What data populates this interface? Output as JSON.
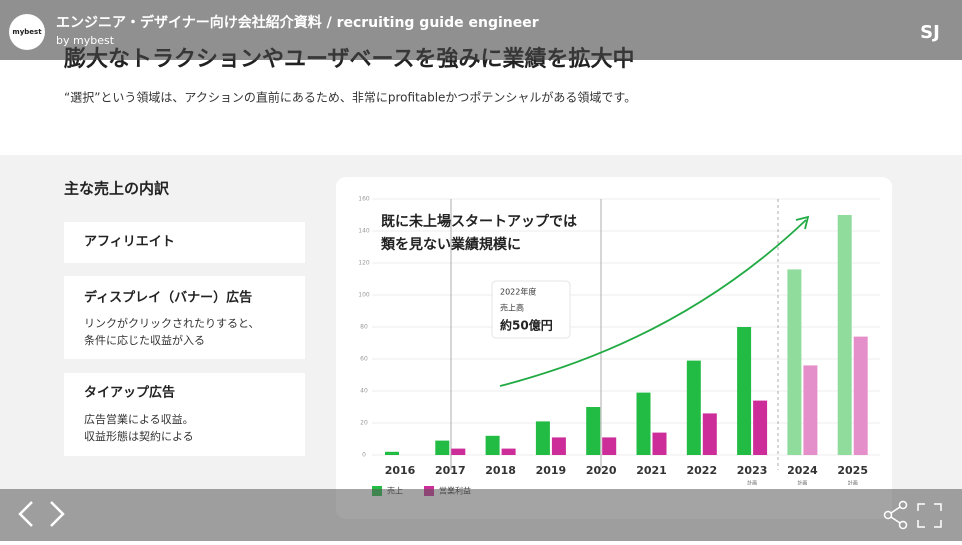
{
  "header": {
    "logo": "mybest",
    "title": "エンジニア・デザイナー向け会社紹介資料 / recruiting guide engineer",
    "byline": "by mybest",
    "brand": "SJ"
  },
  "slide": {
    "heading": "膨大なトラクションやユーザベースを強みに業績を拡大中",
    "subheading": "“選択”という領域は、アクションの直前にあるため、非常にprofitableかつポテンシャルがある領域です。",
    "section_title": "主な売上の内訳",
    "cards": [
      {
        "title": "アフィリエイト"
      },
      {
        "title": "ディスプレイ（バナー）広告",
        "body": [
          "リンクがクリックされたりすると、",
          "条件に応じた収益が入る"
        ]
      },
      {
        "title": "タイアップ広告",
        "body": [
          "広告営業による収益。",
          "収益形態は契約による"
        ]
      }
    ]
  },
  "chart_data": {
    "type": "bar",
    "annotation": [
      "既に未上場スタートアップでは",
      "類を見ない業績規模に"
    ],
    "callout": [
      "2022年度",
      "売上高",
      "約50億円"
    ],
    "categories": [
      "2016",
      "2017",
      "2018",
      "2019",
      "2020",
      "2021",
      "2022",
      "2023",
      "2024",
      "2025"
    ],
    "sublabels": [
      null,
      null,
      null,
      null,
      null,
      null,
      null,
      "計画",
      "計画",
      "計画"
    ],
    "series": [
      {
        "name": "売上",
        "color": "#22bb44",
        "colors": [
          "#22bb44",
          "#22bb44",
          "#22bb44",
          "#22bb44",
          "#22bb44",
          "#22bb44",
          "#22bb44",
          "#22bb44",
          "#8fdc9c",
          "#8fdc9c"
        ],
        "values": [
          2,
          9,
          12,
          21,
          30,
          39,
          59,
          80,
          116,
          150
        ]
      },
      {
        "name": "営業利益",
        "color": "#cc2d99",
        "colors": [
          "#cc2d99",
          "#cc2d99",
          "#cc2d99",
          "#cc2d99",
          "#cc2d99",
          "#cc2d99",
          "#cc2d99",
          "#cc2d99",
          "#e58fca",
          "#e58fca"
        ],
        "values": [
          0,
          4,
          4,
          11,
          11,
          14,
          26,
          34,
          56,
          74
        ]
      }
    ],
    "ylim": [
      0,
      160
    ],
    "yticks": [
      0,
      20,
      40,
      60,
      80,
      100,
      120,
      140,
      160
    ],
    "grid": true
  }
}
